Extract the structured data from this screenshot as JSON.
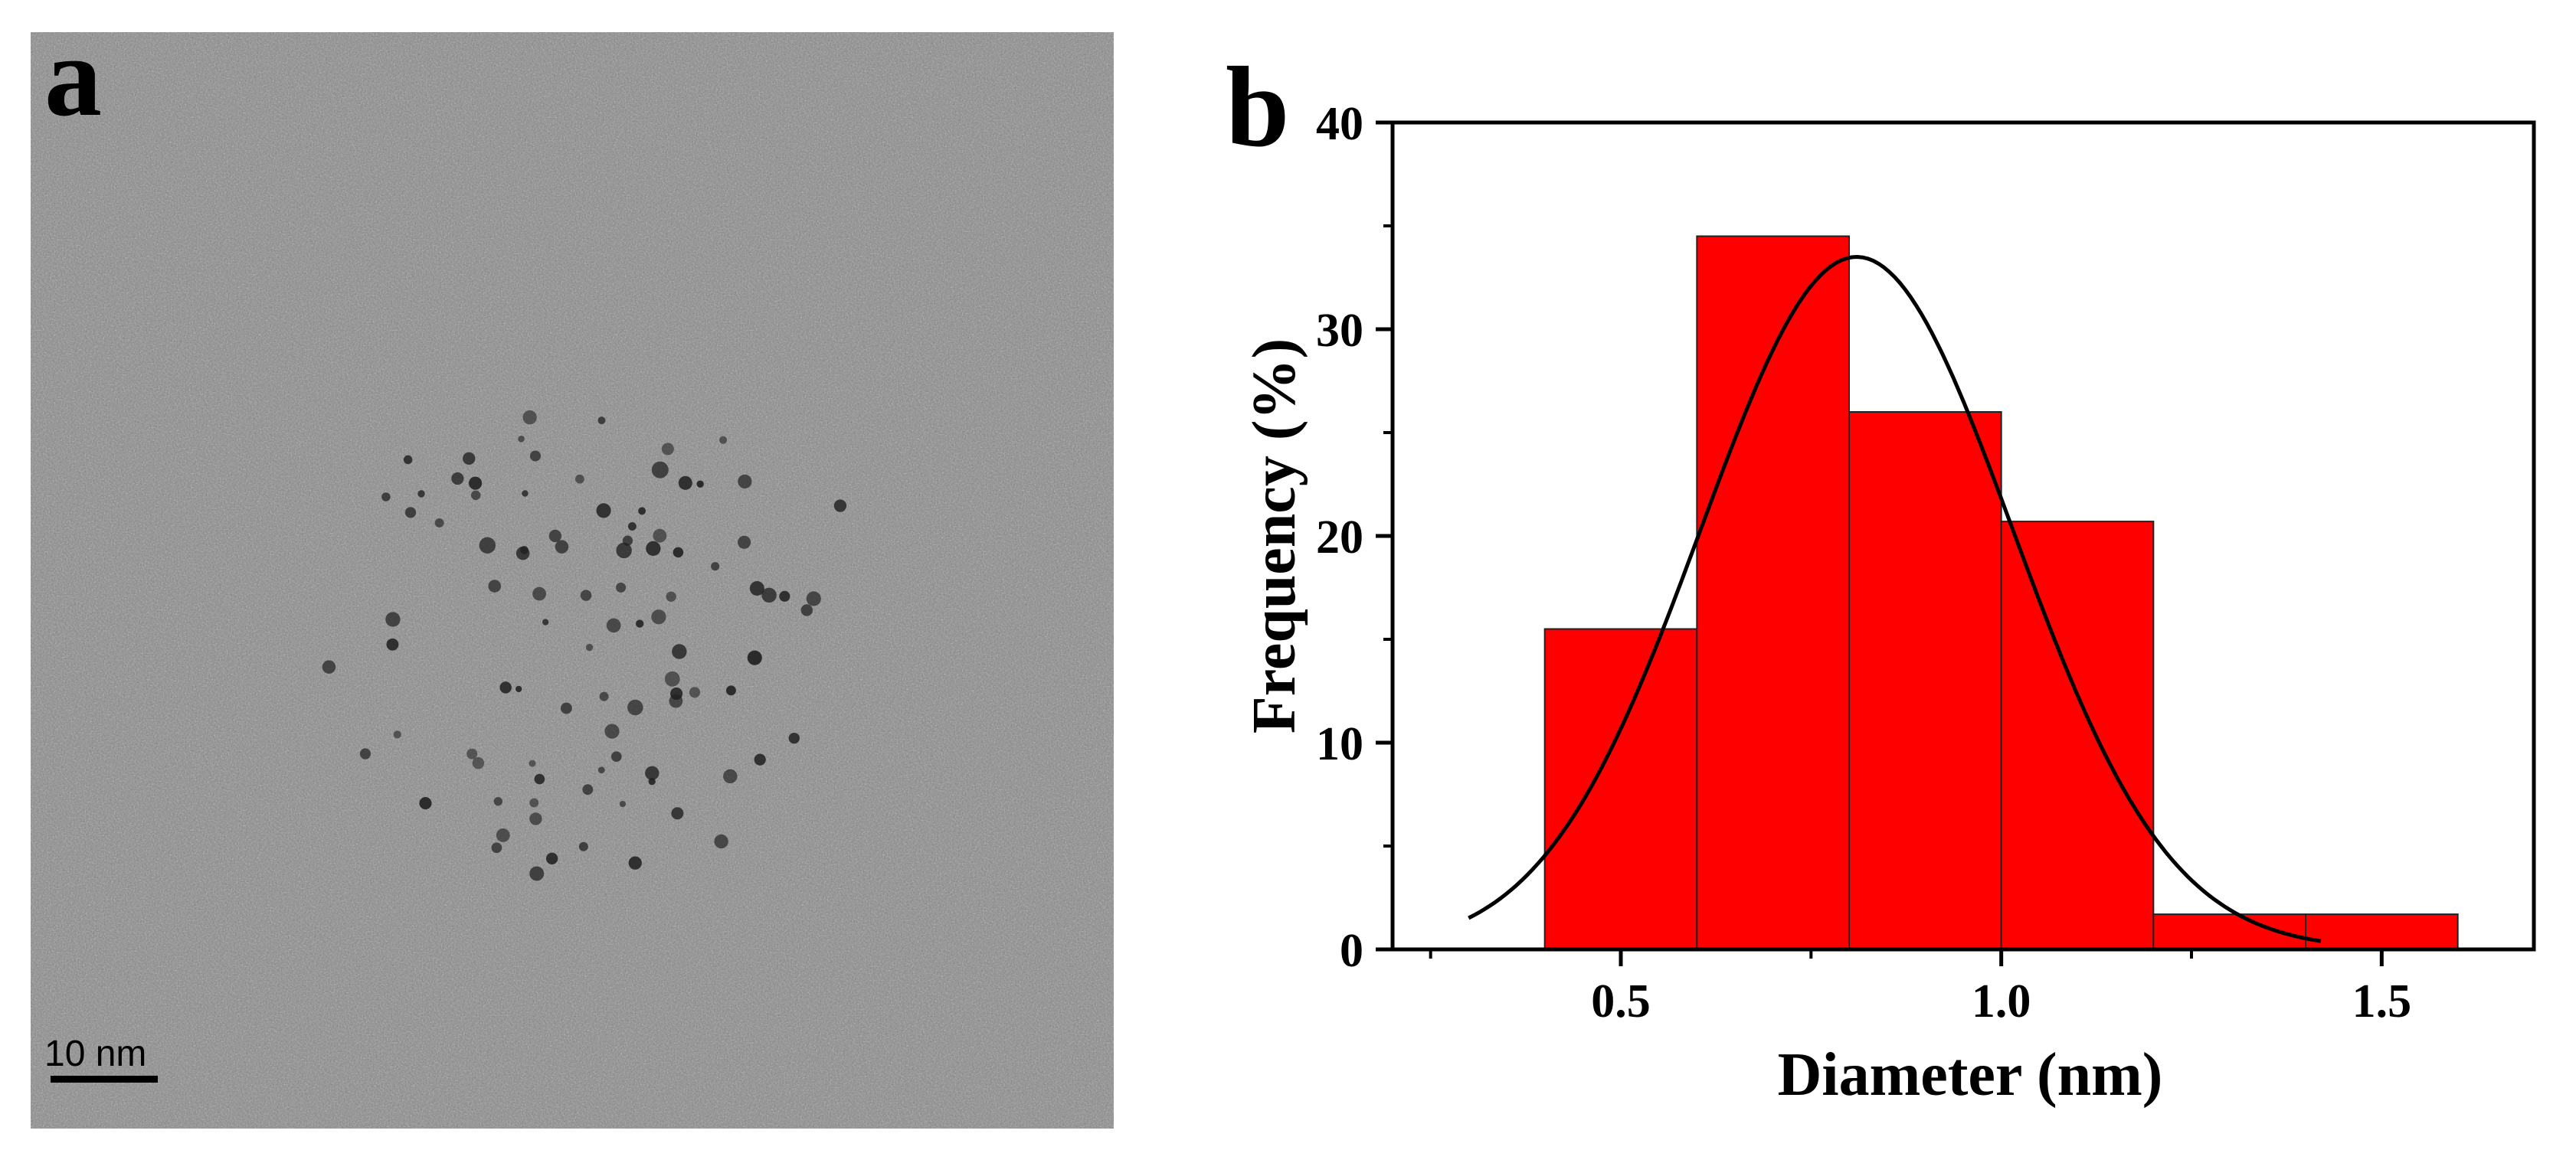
{
  "panel_a": {
    "letter": "a",
    "scale_bar_label": "10 nm",
    "scale_bar_nm": 10,
    "image_description_name": "tem-micrograph"
  },
  "panel_b": {
    "letter": "b"
  },
  "chart_data": {
    "type": "bar",
    "title": "",
    "xlabel": "Diameter (nm)",
    "ylabel": "Frequency (%)",
    "xlim": [
      0.2,
      1.7
    ],
    "ylim": [
      0,
      40
    ],
    "x_ticks": [
      0.5,
      1.0,
      1.5
    ],
    "x_tick_labels": [
      "0.5",
      "1.0",
      "1.5"
    ],
    "y_ticks": [
      0,
      10,
      20,
      30,
      40
    ],
    "y_tick_labels": [
      "0",
      "10",
      "20",
      "30",
      "40"
    ],
    "bins": [
      {
        "start": 0.4,
        "end": 0.6,
        "value": 15.5
      },
      {
        "start": 0.6,
        "end": 0.8,
        "value": 34.5
      },
      {
        "start": 0.8,
        "end": 1.0,
        "value": 26.0
      },
      {
        "start": 1.0,
        "end": 1.2,
        "value": 20.7
      },
      {
        "start": 1.2,
        "end": 1.4,
        "value": 1.7
      },
      {
        "start": 1.4,
        "end": 1.6,
        "value": 1.7
      }
    ],
    "fit": {
      "type": "gaussian",
      "center": 0.81,
      "sigma": 0.205,
      "amplitude": 33.5,
      "x_range": [
        0.3,
        1.42
      ]
    },
    "bar_color": "#ff0000",
    "fit_color": "#000000",
    "grid": false,
    "legend": "none"
  }
}
